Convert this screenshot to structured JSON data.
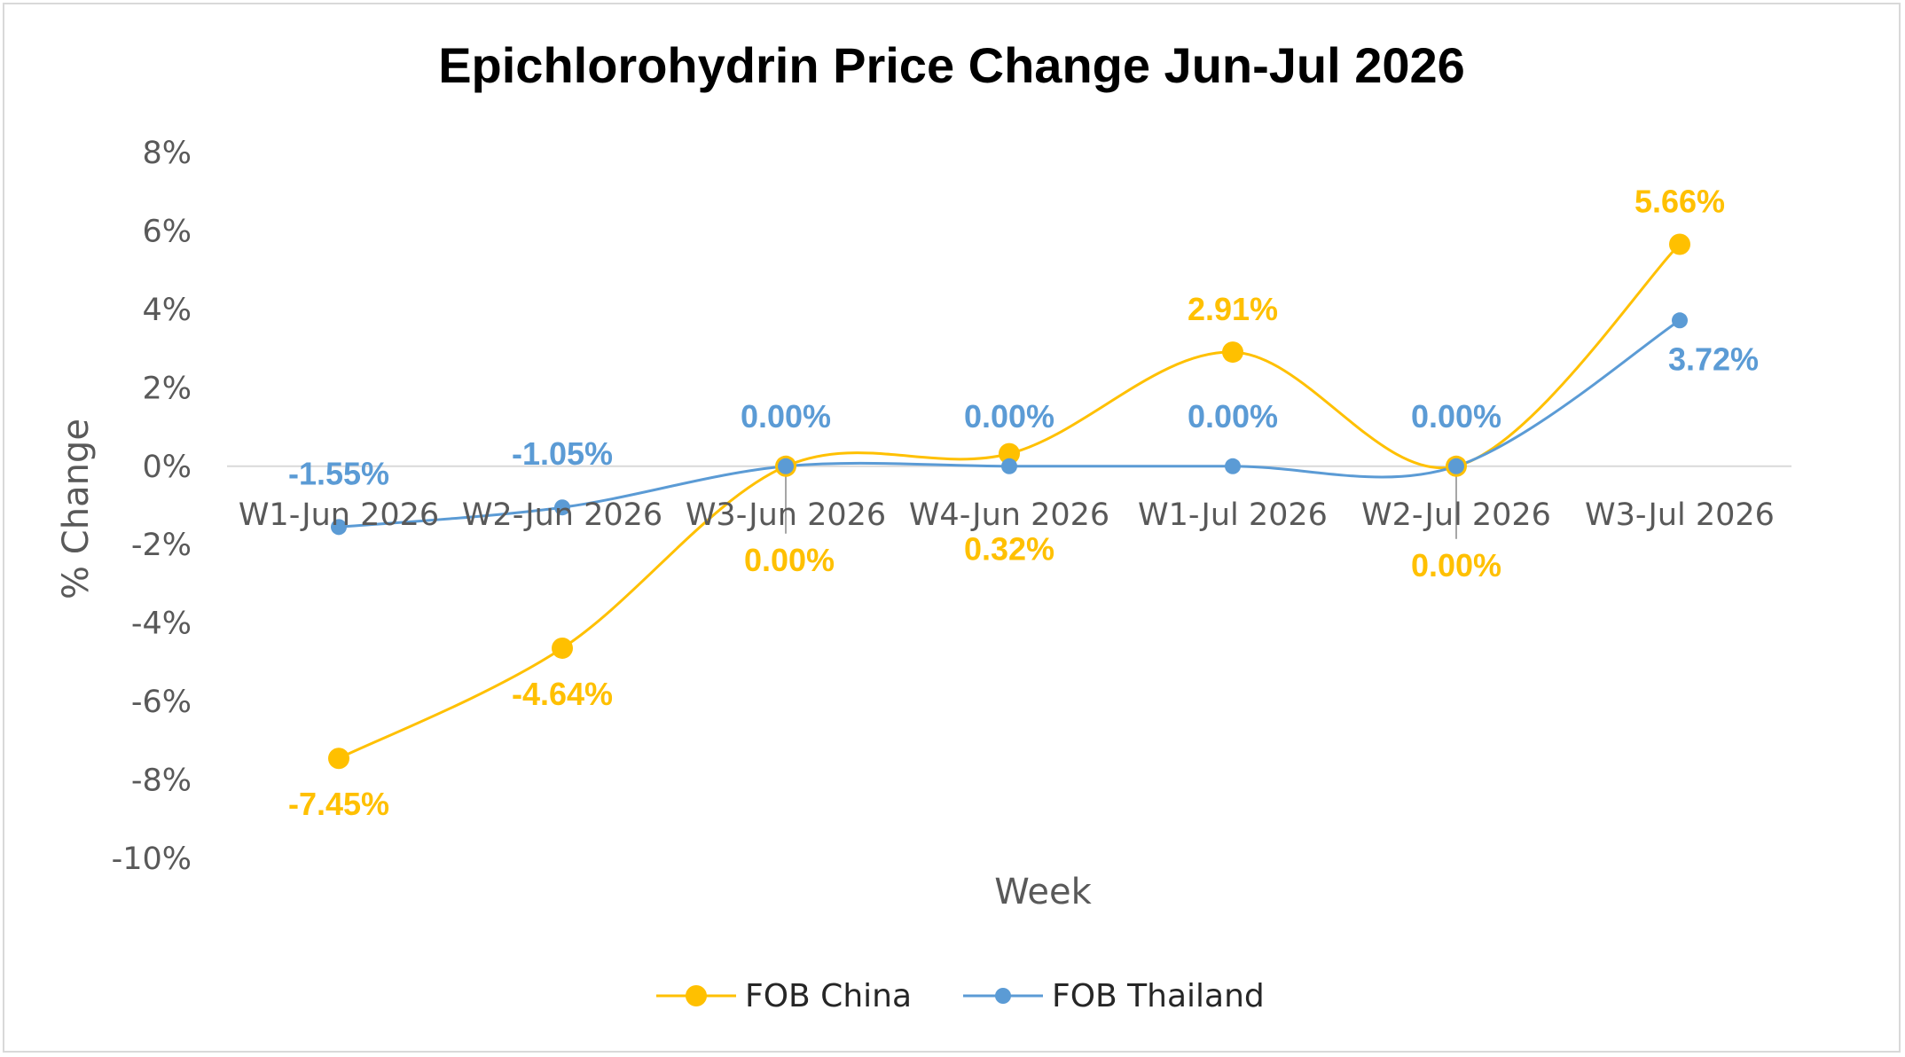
{
  "chart_data": {
    "type": "line",
    "title": "Epichlorohydrin Price Change Jun-Jul 2026",
    "xlabel": "Week",
    "ylabel": "% Change",
    "categories": [
      "W1-Jun 2026",
      "W2-Jun 2026",
      "W3-Jun 2026",
      "W4-Jun 2026",
      "W1-Jul 2026",
      "W2-Jul 2026",
      "W3-Jul 2026"
    ],
    "y_ticks": [
      "8%",
      "6%",
      "4%",
      "2%",
      "0%",
      "-2%",
      "-4%",
      "-6%",
      "-8%",
      "-10%"
    ],
    "ylim": [
      -10,
      8
    ],
    "grid": false,
    "legend_position": "bottom",
    "series": [
      {
        "name": "FOB China",
        "color": "#FFC000",
        "values": [
          -7.45,
          -4.64,
          0.0,
          0.32,
          2.91,
          0.0,
          5.66
        ],
        "labels": [
          "-7.45%",
          "-4.64%",
          "0.00%",
          "0.32%",
          "2.91%",
          "0.00%",
          "5.66%"
        ]
      },
      {
        "name": "FOB Thailand",
        "color": "#5B9BD5",
        "values": [
          -1.55,
          -1.05,
          0.0,
          0.0,
          0.0,
          0.0,
          3.72
        ],
        "labels": [
          "-1.55%",
          "-1.05%",
          "0.00%",
          "0.00%",
          "0.00%",
          "0.00%",
          "3.72%"
        ]
      }
    ]
  }
}
